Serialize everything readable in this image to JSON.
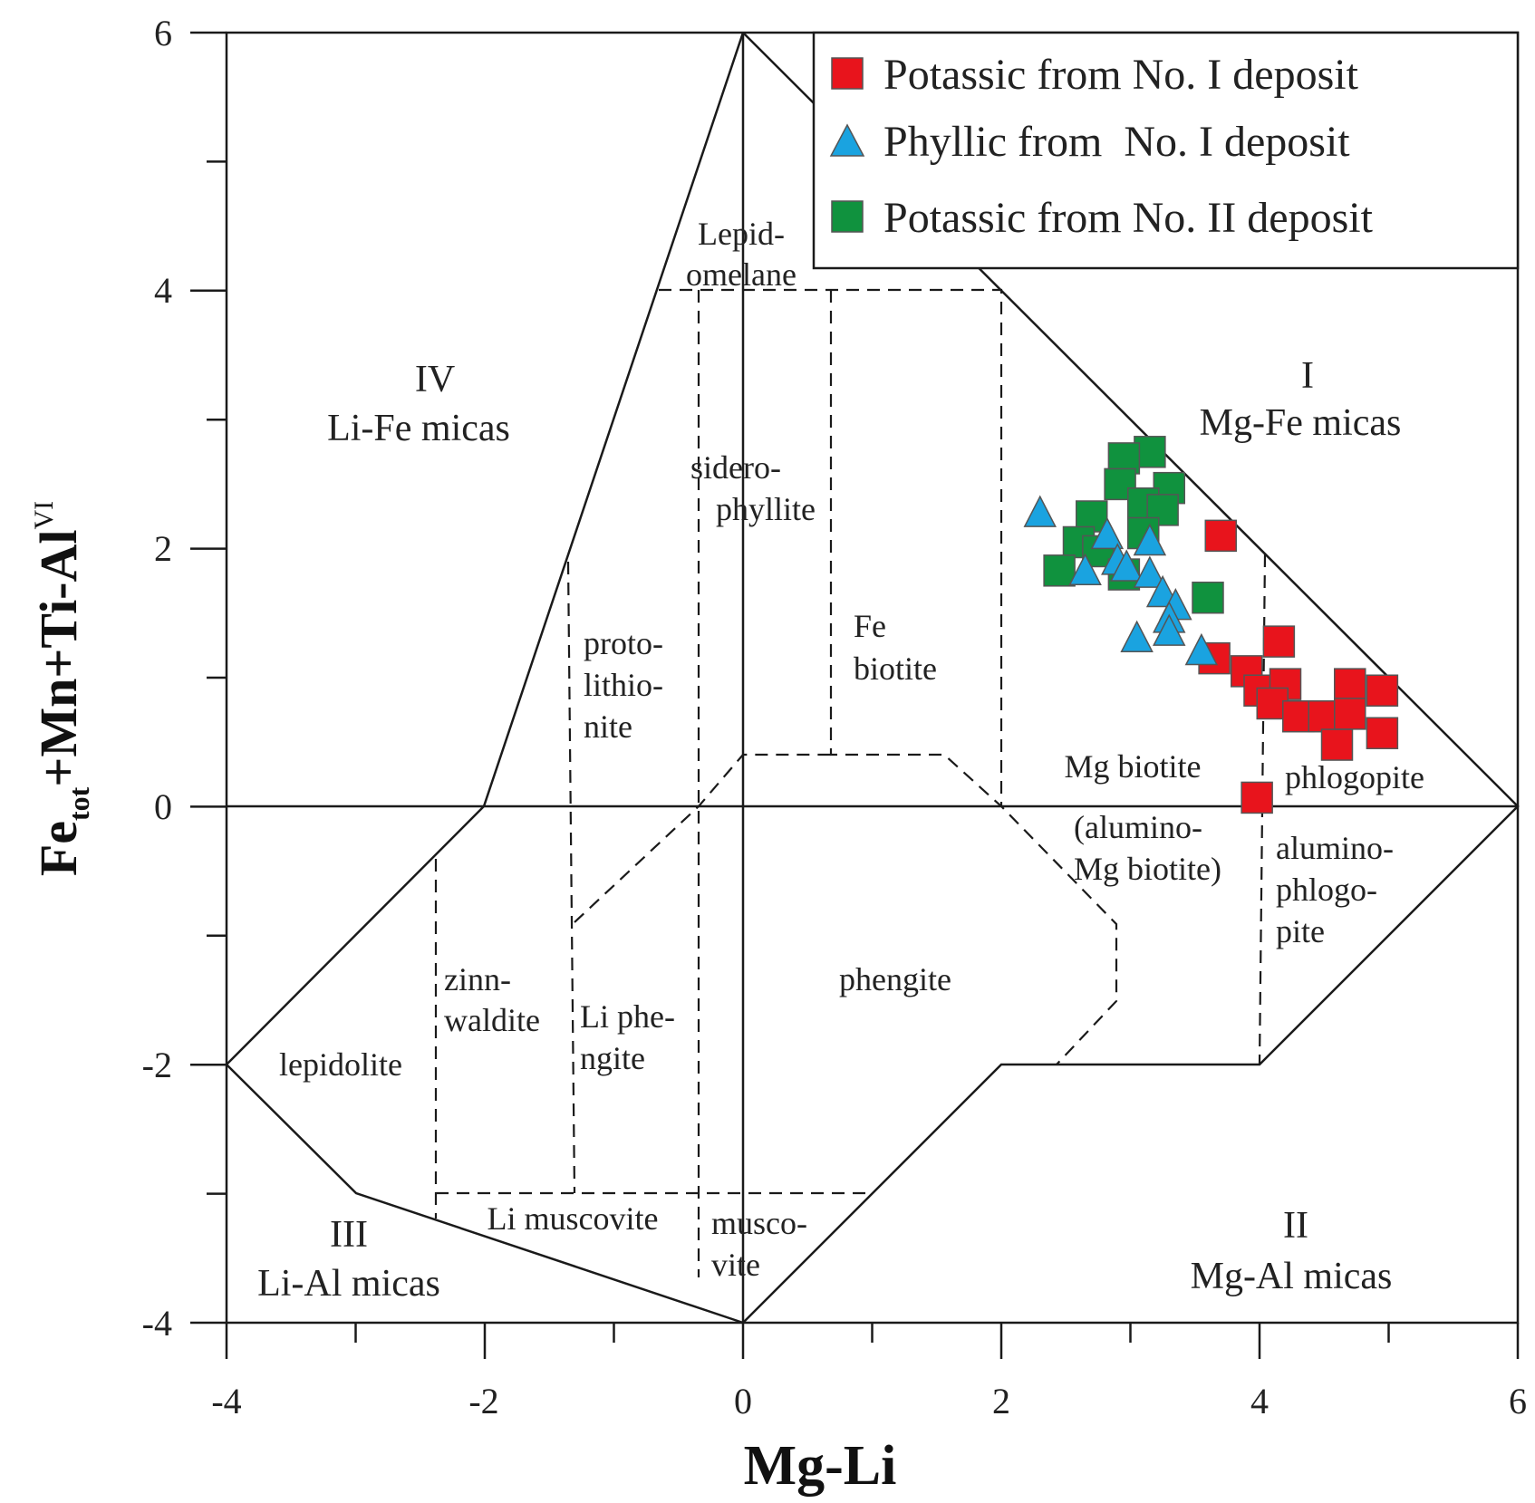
{
  "chart_data": {
    "type": "scatter",
    "title": "",
    "xlabel": "Mg-Li",
    "ylabel": {
      "base": "Fe",
      "sub": "tot",
      "middle": "+Mn+Ti-Al",
      "sup": "VI"
    },
    "xlim": [
      -4,
      6
    ],
    "ylim": [
      -4,
      6
    ],
    "x_ticks": [
      "-4",
      "-2",
      "0",
      "2",
      "4",
      "6"
    ],
    "y_ticks": [
      "6",
      "4",
      "2",
      "0",
      "-2",
      "-4"
    ],
    "legend_position": "top-right",
    "series": [
      {
        "name": "Potassic from No. I deposit",
        "marker": "square",
        "color": "#e8141c",
        "points": [
          [
            3.7,
            2.1
          ],
          [
            4.15,
            1.28
          ],
          [
            3.65,
            1.15
          ],
          [
            3.9,
            1.05
          ],
          [
            4.0,
            0.9
          ],
          [
            4.2,
            0.95
          ],
          [
            4.1,
            0.8
          ],
          [
            4.3,
            0.7
          ],
          [
            4.5,
            0.7
          ],
          [
            4.7,
            0.95
          ],
          [
            4.95,
            0.9
          ],
          [
            4.6,
            0.48
          ],
          [
            4.7,
            0.72
          ],
          [
            4.95,
            0.57
          ],
          [
            3.98,
            0.07
          ]
        ]
      },
      {
        "name": "Phyllic from  No. I deposit",
        "marker": "triangle",
        "color": "#1aa3e0",
        "points": [
          [
            2.3,
            2.27
          ],
          [
            2.82,
            2.1
          ],
          [
            3.15,
            2.05
          ],
          [
            2.65,
            1.82
          ],
          [
            2.9,
            1.9
          ],
          [
            2.97,
            1.85
          ],
          [
            3.15,
            1.8
          ],
          [
            3.25,
            1.65
          ],
          [
            3.35,
            1.55
          ],
          [
            3.3,
            1.45
          ],
          [
            3.3,
            1.35
          ],
          [
            3.05,
            1.3
          ],
          [
            3.55,
            1.2
          ]
        ]
      },
      {
        "name": "Potassic from No. II deposit",
        "marker": "square",
        "color": "#10923e",
        "points": [
          [
            3.15,
            2.75
          ],
          [
            2.95,
            2.7
          ],
          [
            3.3,
            2.47
          ],
          [
            2.92,
            2.5
          ],
          [
            3.1,
            2.35
          ],
          [
            3.25,
            2.3
          ],
          [
            3.1,
            2.12
          ],
          [
            2.7,
            2.25
          ],
          [
            2.6,
            2.05
          ],
          [
            2.75,
            1.98
          ],
          [
            2.45,
            1.83
          ],
          [
            2.95,
            1.8
          ],
          [
            3.6,
            1.62
          ]
        ]
      }
    ],
    "region_labels": {
      "lepidomelane": [
        "Lepid-",
        "omelane"
      ],
      "siderophyllite": [
        "sidero-",
        "phyllite"
      ],
      "fe_biotite": [
        "Fe",
        "biotite"
      ],
      "protolithionite": [
        "proto-",
        "lithio-",
        "nite"
      ],
      "mg_biotite": "Mg biotite",
      "phlogopite": "phlogopite",
      "alumino_mg_biotite": [
        "(alumino-",
        "Mg biotite)"
      ],
      "aluminophlogopite": [
        "alumino-",
        "phlogo-",
        "pite"
      ],
      "phengite": "phengite",
      "zinnwaldite": [
        "zinn-",
        "waldite"
      ],
      "li_phengite": [
        "Li phe-",
        "ngite"
      ],
      "lepidolite": "lepidolite",
      "li_muscovite": "Li muscovite",
      "muscovite": [
        "musco-",
        "vite"
      ]
    },
    "field_labels": {
      "I": [
        "I",
        "Mg-Fe micas"
      ],
      "II": [
        "II",
        "Mg-Al  micas"
      ],
      "III": [
        "III",
        "Li-Al  micas"
      ],
      "IV": [
        "IV",
        "Li-Fe micas"
      ]
    },
    "legend_pos": {
      "x": 1,
      "y": 1
    }
  }
}
